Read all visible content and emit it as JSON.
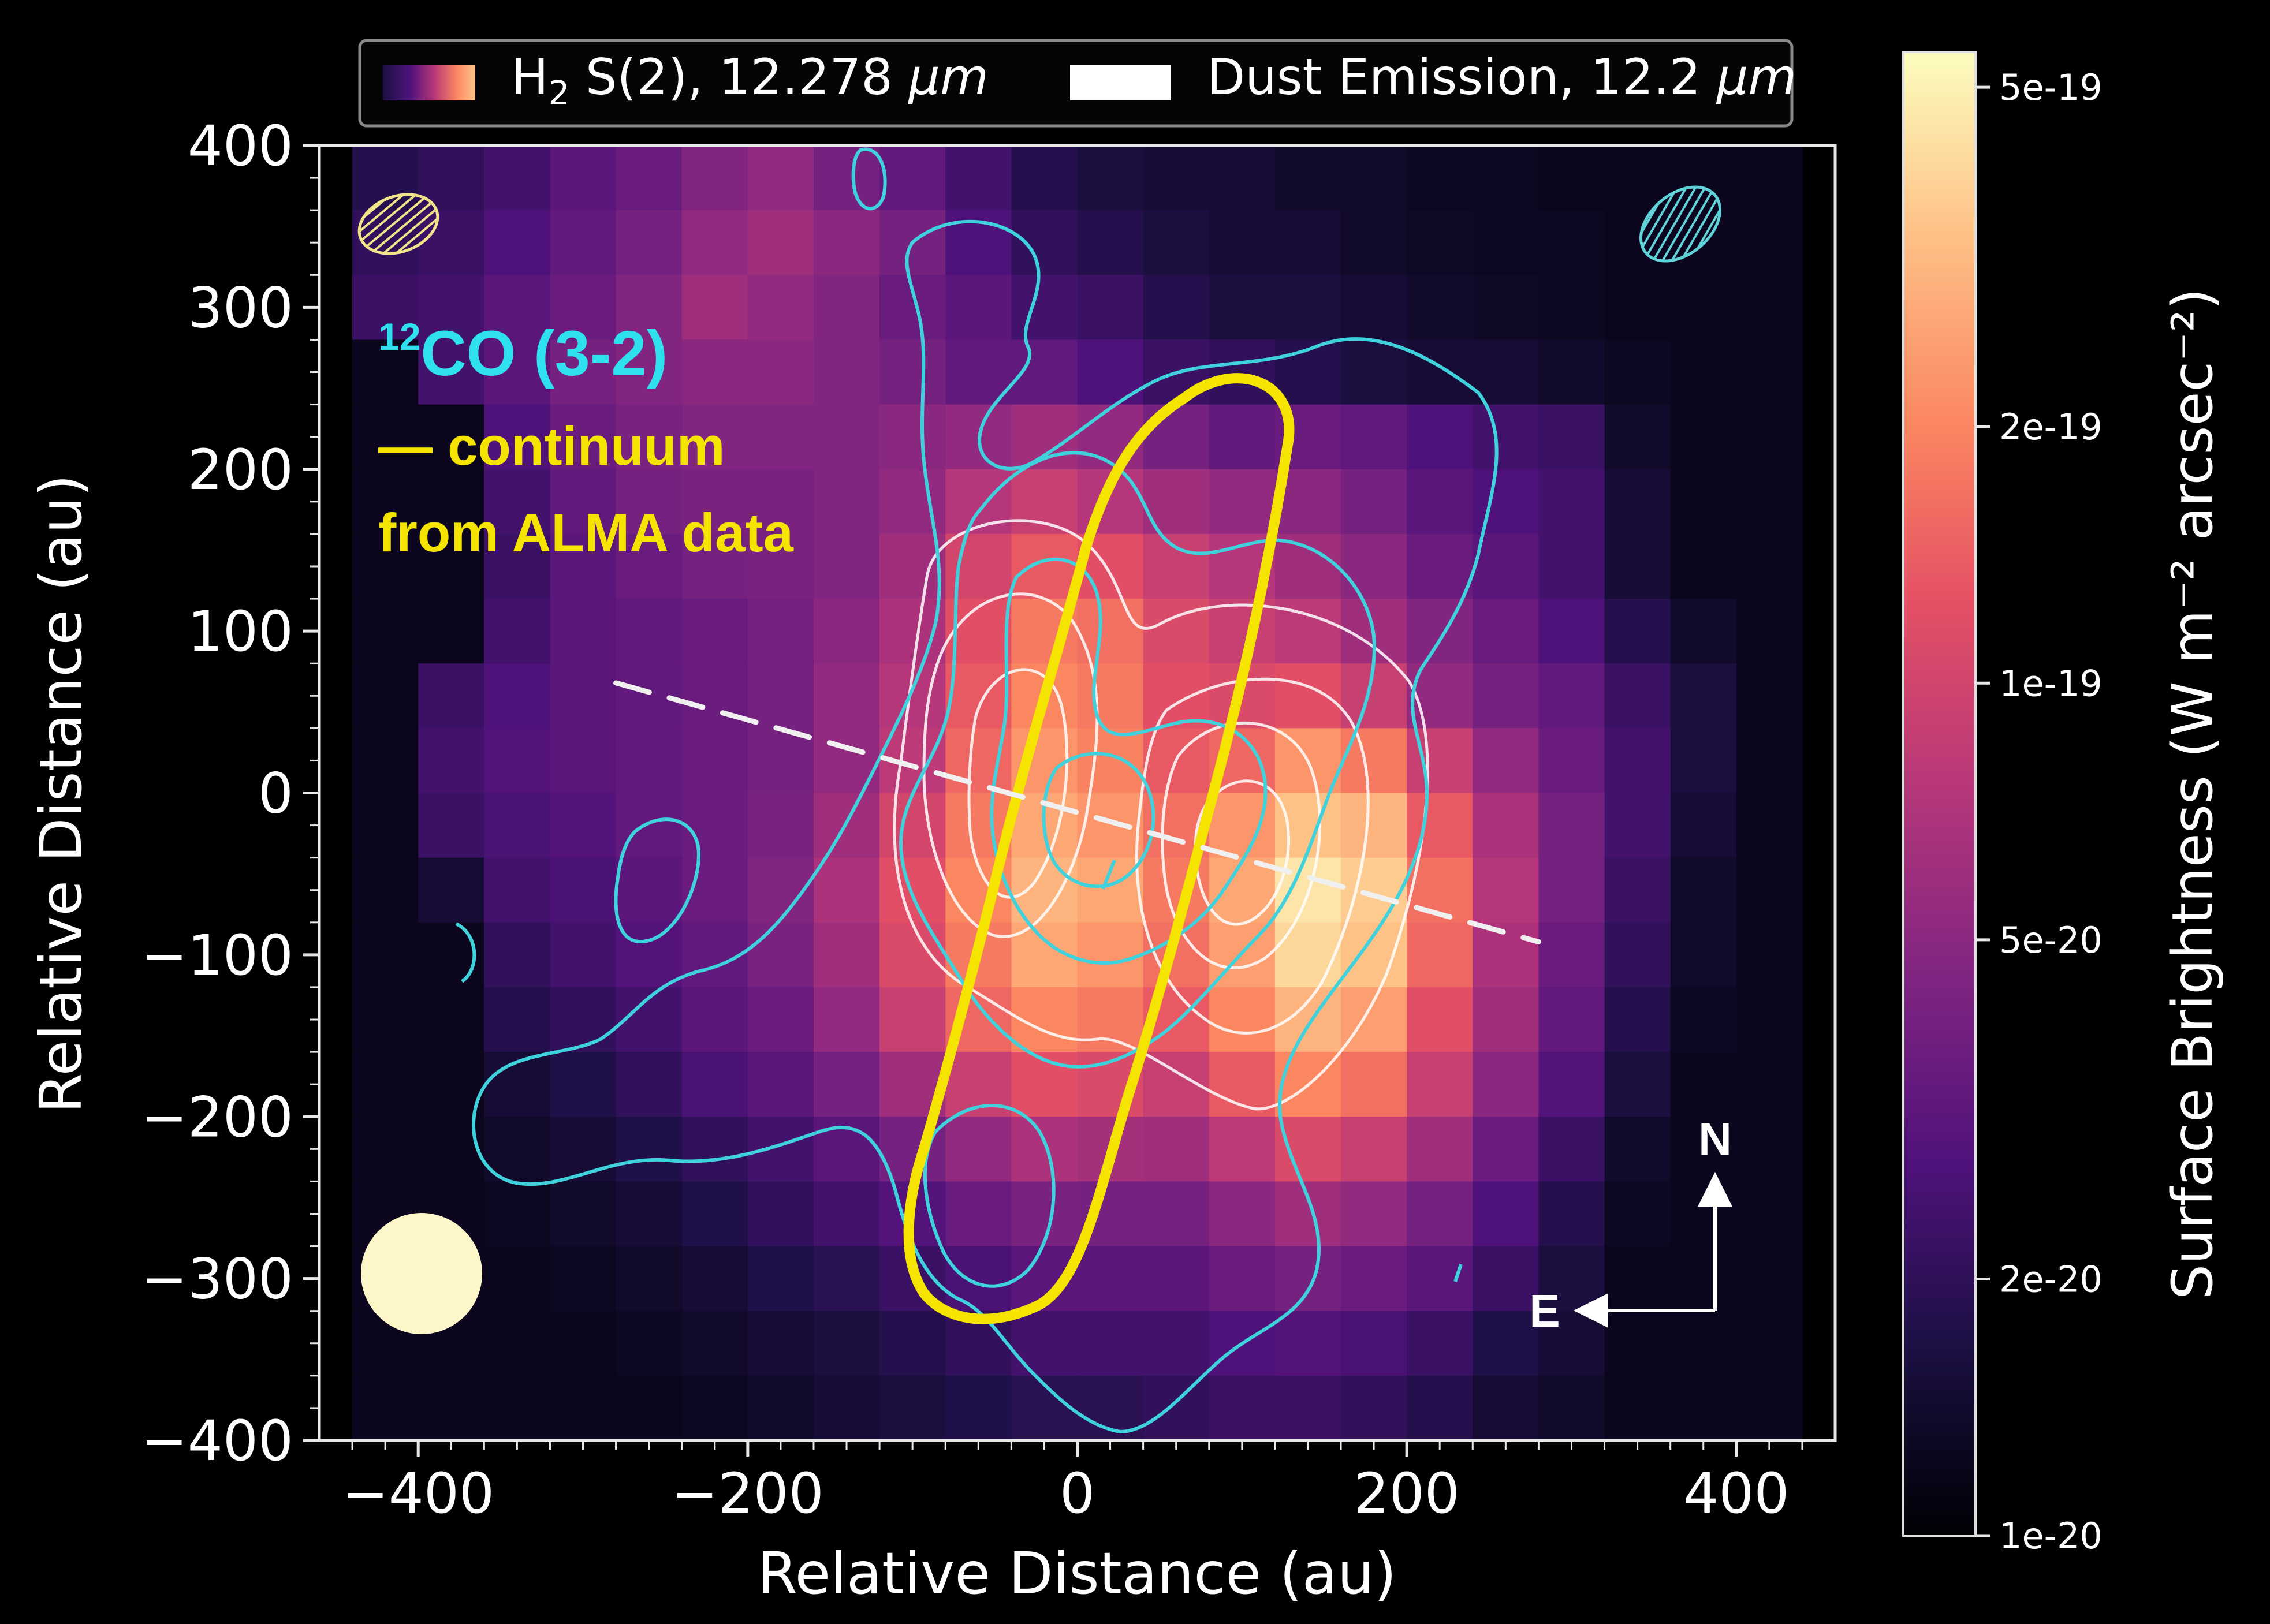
{
  "chart_data": {
    "type": "heatmap",
    "xlabel": "Relative Distance (au)",
    "ylabel": "Relative Distance (au)",
    "xlim": [
      -460,
      460
    ],
    "ylim": [
      -400,
      400
    ],
    "x_ticks": [
      "−400",
      "−200",
      "0",
      "200",
      "400"
    ],
    "x_tick_values": [
      -400,
      -200,
      0,
      200,
      400
    ],
    "y_ticks": [
      "400",
      "300",
      "200",
      "100",
      "0",
      "−100",
      "−200",
      "−300",
      "−400"
    ],
    "y_tick_values": [
      400,
      300,
      200,
      100,
      0,
      -100,
      -200,
      -300,
      -400
    ],
    "legend": {
      "placement": "top",
      "entries": [
        {
          "label_main": "H",
          "label_sub": "2",
          "label_rest": " S(2), 12.278 ",
          "label_unit": "μm",
          "kind": "colormap"
        },
        {
          "label_main": "Dust Emission, 12.2 ",
          "label_unit": "μm",
          "kind": "white"
        }
      ]
    },
    "colorbar": {
      "label": "Surface Brightness (W m⁻² arcsec⁻²)",
      "scale": "log",
      "range": [
        1e-20,
        5.5e-19
      ],
      "ticks": [
        {
          "value": 5e-19,
          "label": "5e-19"
        },
        {
          "value": 2e-19,
          "label": "2e-19"
        },
        {
          "value": 1e-19,
          "label": "1e-19"
        },
        {
          "value": 5e-20,
          "label": "5e-20"
        },
        {
          "value": 2e-20,
          "label": "2e-20"
        },
        {
          "value": 1e-20,
          "label": "1e-20"
        }
      ]
    },
    "heatmap": {
      "pixel_size_au": 40,
      "x_start": -440,
      "y_top": 400,
      "rows": [
        [
          0.15,
          0.18,
          0.22,
          0.28,
          0.32,
          0.38,
          0.42,
          0.35,
          0.3,
          0.22,
          0.15,
          0.12,
          0.1,
          0.1,
          0.08,
          0.08,
          0.06,
          0.06,
          0.05,
          0.05,
          0.05,
          0.05
        ],
        [
          0.18,
          0.2,
          0.25,
          0.3,
          0.35,
          0.42,
          0.45,
          0.4,
          0.35,
          0.25,
          0.18,
          0.15,
          0.12,
          0.1,
          0.1,
          0.08,
          0.07,
          0.06,
          0.06,
          0.05,
          0.05,
          0.05
        ],
        [
          0.2,
          0.22,
          0.28,
          0.32,
          0.38,
          0.45,
          0.42,
          0.38,
          0.32,
          0.28,
          0.22,
          0.2,
          0.15,
          0.12,
          0.12,
          0.1,
          0.08,
          0.07,
          0.06,
          0.05,
          0.05,
          0.05
        ],
        [
          0.05,
          0.22,
          0.28,
          0.35,
          0.38,
          0.4,
          0.4,
          0.38,
          0.35,
          0.3,
          0.3,
          0.25,
          0.2,
          0.18,
          0.15,
          0.12,
          0.1,
          0.1,
          0.08,
          0.06,
          0.05,
          0.05
        ],
        [
          0.05,
          0.05,
          0.25,
          0.32,
          0.36,
          0.38,
          0.38,
          0.38,
          0.4,
          0.42,
          0.45,
          0.42,
          0.35,
          0.3,
          0.32,
          0.3,
          0.25,
          0.22,
          0.2,
          0.08,
          0.05,
          0.05
        ],
        [
          0.05,
          0.05,
          0.22,
          0.3,
          0.35,
          0.36,
          0.36,
          0.38,
          0.42,
          0.5,
          0.55,
          0.5,
          0.45,
          0.42,
          0.4,
          0.35,
          0.28,
          0.25,
          0.22,
          0.1,
          0.05,
          0.05
        ],
        [
          0.05,
          0.05,
          0.2,
          0.28,
          0.32,
          0.35,
          0.36,
          0.38,
          0.45,
          0.58,
          0.65,
          0.62,
          0.55,
          0.5,
          0.45,
          0.4,
          0.32,
          0.28,
          0.22,
          0.1,
          0.05,
          0.05
        ],
        [
          0.05,
          0.05,
          0.22,
          0.28,
          0.3,
          0.32,
          0.35,
          0.4,
          0.48,
          0.62,
          0.72,
          0.7,
          0.6,
          0.55,
          0.52,
          0.45,
          0.38,
          0.32,
          0.25,
          0.15,
          0.08,
          0.05
        ],
        [
          0.05,
          0.2,
          0.25,
          0.28,
          0.3,
          0.32,
          0.35,
          0.42,
          0.5,
          0.65,
          0.75,
          0.72,
          0.62,
          0.6,
          0.62,
          0.55,
          0.42,
          0.35,
          0.3,
          0.2,
          0.12,
          0.05
        ],
        [
          0.05,
          0.22,
          0.26,
          0.28,
          0.3,
          0.32,
          0.35,
          0.42,
          0.52,
          0.68,
          0.78,
          0.74,
          0.65,
          0.68,
          0.78,
          0.72,
          0.55,
          0.42,
          0.32,
          0.22,
          0.12,
          0.05
        ],
        [
          0.05,
          0.2,
          0.24,
          0.26,
          0.3,
          0.32,
          0.36,
          0.45,
          0.58,
          0.72,
          0.82,
          0.78,
          0.7,
          0.78,
          0.88,
          0.85,
          0.65,
          0.48,
          0.35,
          0.22,
          0.1,
          0.05
        ],
        [
          0.05,
          0.1,
          0.22,
          0.24,
          0.28,
          0.32,
          0.38,
          0.48,
          0.62,
          0.75,
          0.85,
          0.82,
          0.72,
          0.82,
          0.95,
          0.9,
          0.7,
          0.5,
          0.35,
          0.2,
          0.08,
          0.05
        ],
        [
          0.05,
          0.05,
          0.18,
          0.22,
          0.26,
          0.3,
          0.36,
          0.45,
          0.6,
          0.72,
          0.82,
          0.78,
          0.7,
          0.8,
          0.92,
          0.88,
          0.68,
          0.48,
          0.32,
          0.18,
          0.08,
          0.05
        ],
        [
          0.05,
          0.05,
          0.15,
          0.18,
          0.22,
          0.28,
          0.32,
          0.42,
          0.55,
          0.68,
          0.75,
          0.72,
          0.65,
          0.75,
          0.85,
          0.8,
          0.62,
          0.45,
          0.3,
          0.15,
          0.06,
          0.05
        ],
        [
          0.05,
          0.05,
          0.1,
          0.14,
          0.18,
          0.24,
          0.28,
          0.35,
          0.45,
          0.55,
          0.62,
          0.6,
          0.55,
          0.65,
          0.75,
          0.7,
          0.55,
          0.4,
          0.26,
          0.12,
          0.05,
          0.05
        ],
        [
          0.05,
          0.05,
          0.08,
          0.1,
          0.14,
          0.18,
          0.22,
          0.28,
          0.35,
          0.42,
          0.48,
          0.46,
          0.45,
          0.52,
          0.6,
          0.55,
          0.45,
          0.32,
          0.2,
          0.08,
          0.05,
          0.05
        ],
        [
          0.05,
          0.05,
          0.06,
          0.08,
          0.1,
          0.14,
          0.18,
          0.22,
          0.26,
          0.32,
          0.36,
          0.35,
          0.35,
          0.4,
          0.45,
          0.42,
          0.35,
          0.25,
          0.15,
          0.06,
          0.05,
          0.05
        ],
        [
          0.05,
          0.05,
          0.05,
          0.06,
          0.08,
          0.1,
          0.14,
          0.16,
          0.2,
          0.24,
          0.28,
          0.28,
          0.28,
          0.32,
          0.35,
          0.32,
          0.28,
          0.2,
          0.12,
          0.05,
          0.05,
          0.05
        ],
        [
          0.05,
          0.05,
          0.05,
          0.05,
          0.06,
          0.08,
          0.1,
          0.12,
          0.15,
          0.18,
          0.22,
          0.22,
          0.22,
          0.25,
          0.26,
          0.24,
          0.2,
          0.14,
          0.1,
          0.05,
          0.05,
          0.05
        ],
        [
          0.05,
          0.05,
          0.05,
          0.05,
          0.05,
          0.06,
          0.08,
          0.1,
          0.12,
          0.14,
          0.16,
          0.16,
          0.18,
          0.2,
          0.2,
          0.18,
          0.15,
          0.1,
          0.08,
          0.05,
          0.05,
          0.05
        ]
      ]
    },
    "annotations": {
      "co_label": {
        "sup": "12",
        "text": "CO (3-2)",
        "color": "#2fe0ee"
      },
      "continuum_label_1": "— continuum",
      "continuum_label_2": "from ALMA data",
      "continuum_color": "#f5e400",
      "north": "N",
      "east": "E"
    },
    "dashed_axis": {
      "from": [
        -280,
        68
      ],
      "to": [
        280,
        -92
      ]
    }
  }
}
